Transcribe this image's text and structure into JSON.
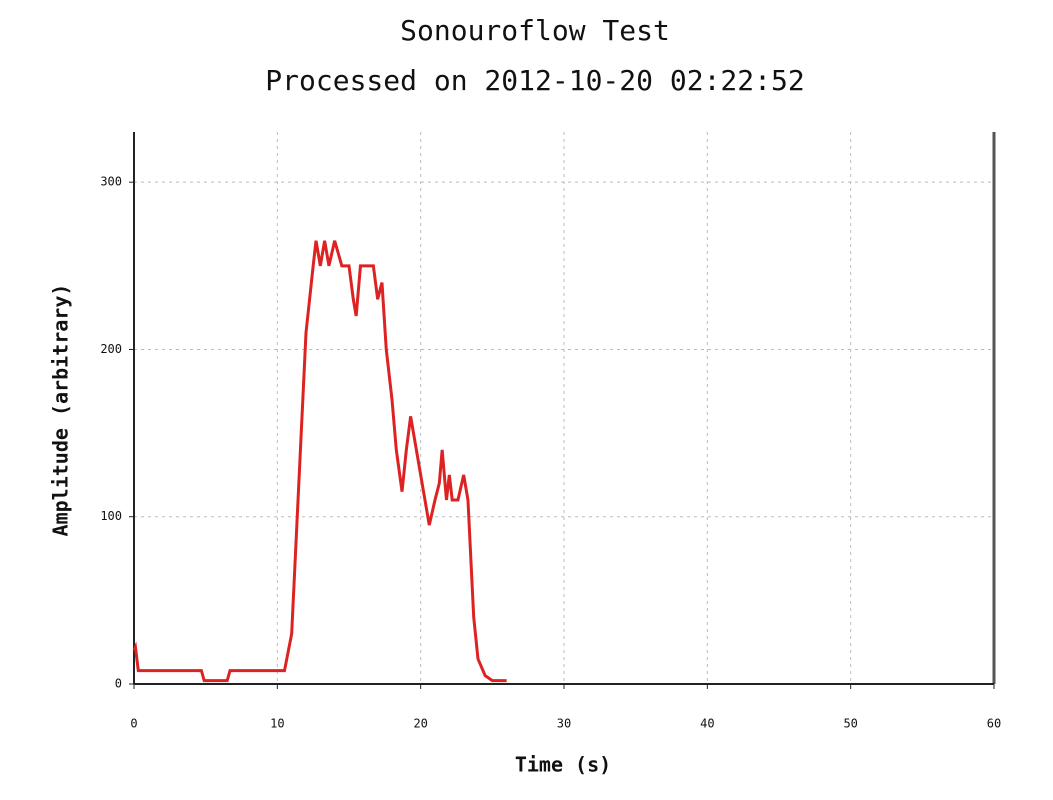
{
  "chart_data": {
    "type": "line",
    "title": "Sonouroflow Test",
    "subtitle": "Processed on 2012-10-20 02:22:52",
    "x_label": "Time (s)",
    "y_label": "Amplitude (arbitrary)",
    "xlim": [
      0,
      60
    ],
    "xticks": [
      0,
      10,
      20,
      30,
      40,
      50,
      60
    ],
    "ylim": [
      0,
      330
    ],
    "yticks": [
      0,
      100,
      200,
      300
    ],
    "grid": true,
    "series": [
      {
        "name": "Amplitude",
        "color": "#dd2222",
        "x": [
          0,
          0.1,
          0.3,
          4.7,
          4.9,
          6.5,
          6.7,
          10.5,
          11,
          11.5,
          12,
          12.5,
          12.7,
          13,
          13.3,
          13.6,
          14,
          14.5,
          15,
          15.3,
          15.5,
          15.8,
          16.7,
          17,
          17.3,
          17.6,
          18,
          18.3,
          18.7,
          19,
          19.3,
          19.7,
          20.2,
          20.6,
          21,
          21.3,
          21.5,
          21.8,
          22,
          22.2,
          22.6,
          23,
          23.3,
          23.7,
          24,
          24.5,
          25,
          26
        ],
        "values": [
          20,
          22,
          8,
          8,
          2,
          2,
          8,
          8,
          30,
          120,
          210,
          250,
          265,
          250,
          265,
          250,
          265,
          250,
          250,
          230,
          220,
          250,
          250,
          230,
          240,
          200,
          170,
          140,
          115,
          140,
          160,
          140,
          115,
          95,
          110,
          120,
          140,
          110,
          125,
          110,
          110,
          125,
          110,
          40,
          15,
          5,
          2,
          2
        ]
      }
    ]
  }
}
